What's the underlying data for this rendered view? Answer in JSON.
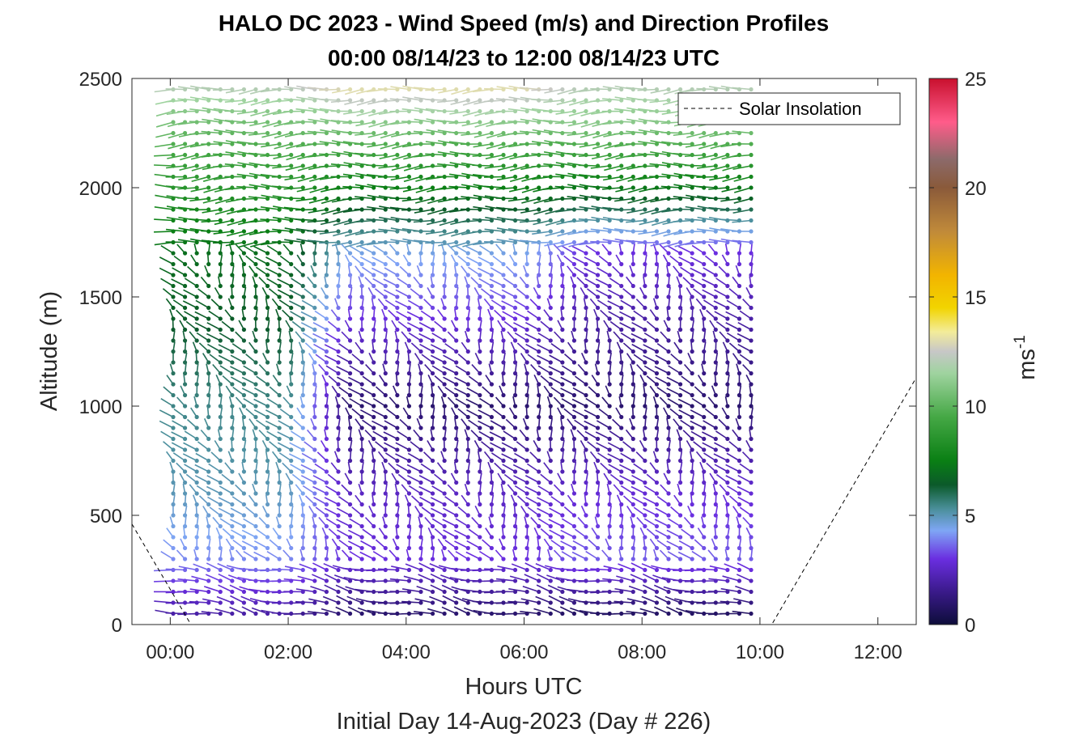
{
  "chart_data": {
    "type": "wind-barb-profile",
    "title": "HALO DC 2023 - Wind Speed (m/s) and Direction Profiles",
    "subtitle": "00:00 08/14/23 to 12:00 08/14/23  UTC",
    "xlabel": "Hours UTC",
    "xlabel2": "Initial Day 14-Aug-2023 (Day # 226)",
    "ylabel": "Altitude (m)",
    "xlim": [
      -0.65,
      12.65
    ],
    "ylim": [
      0,
      2500
    ],
    "x_ticks": [
      0,
      2,
      4,
      6,
      8,
      10,
      12
    ],
    "x_tick_labels": [
      "00:00",
      "02:00",
      "04:00",
      "06:00",
      "08:00",
      "10:00",
      "12:00"
    ],
    "y_ticks": [
      0,
      500,
      1000,
      1500,
      2000,
      2500
    ],
    "y_tick_labels": [
      "0",
      "500",
      "1000",
      "1500",
      "2000",
      "2500"
    ],
    "legend": {
      "label": "Solar Insolation",
      "location": "top-right",
      "line_style": "dashed"
    },
    "colorbar": {
      "label": "ms",
      "label_exponent": "-1",
      "range": [
        0,
        25
      ],
      "ticks": [
        0,
        5,
        10,
        15,
        20,
        25
      ],
      "tick_labels": [
        "0",
        "5",
        "10",
        "15",
        "20",
        "25"
      ],
      "colors": [
        [
          0,
          "#0d0d3a"
        ],
        [
          1.5,
          "#3a1a8a"
        ],
        [
          3,
          "#6a2ee0"
        ],
        [
          4.3,
          "#7fa6f5"
        ],
        [
          5.3,
          "#4a8f9a"
        ],
        [
          6.4,
          "#0b5a2a"
        ],
        [
          7.5,
          "#0a7f14"
        ],
        [
          9.5,
          "#45a845"
        ],
        [
          11.5,
          "#9fd39f"
        ],
        [
          12.5,
          "#c7c7c7"
        ],
        [
          13.4,
          "#f3ec9a"
        ],
        [
          14.5,
          "#f2d400"
        ],
        [
          16,
          "#f2b400"
        ],
        [
          18,
          "#c08a3a"
        ],
        [
          20,
          "#8a5a3a"
        ],
        [
          21.3,
          "#8c6a6a"
        ],
        [
          23,
          "#ff5c8a"
        ],
        [
          25,
          "#c8102e"
        ]
      ]
    },
    "barb_times_hours": [
      0.05,
      0.25,
      0.45,
      0.65,
      0.85,
      1.05,
      1.25,
      1.45,
      1.65,
      1.85,
      2.05,
      2.25,
      2.45,
      2.65,
      2.85,
      3.05,
      3.25,
      3.45,
      3.65,
      3.85,
      4.05,
      4.25,
      4.45,
      4.65,
      4.85,
      5.05,
      5.25,
      5.45,
      5.65,
      5.85,
      6.05,
      6.25,
      6.45,
      6.65,
      6.85,
      7.05,
      7.25,
      7.45,
      7.65,
      7.85,
      8.05,
      8.25,
      8.45,
      8.65,
      8.85,
      9.05,
      9.25,
      9.45,
      9.65,
      9.85
    ],
    "barb_altitudes_m": [
      50,
      100,
      150,
      200,
      250,
      300,
      350,
      400,
      450,
      500,
      550,
      600,
      650,
      700,
      750,
      800,
      850,
      900,
      950,
      1000,
      1050,
      1100,
      1150,
      1200,
      1250,
      1300,
      1350,
      1400,
      1450,
      1500,
      1550,
      1600,
      1650,
      1700,
      1750,
      1800,
      1850,
      1900,
      1950,
      2000,
      2050,
      2100,
      2150,
      2200,
      2250,
      2300,
      2350,
      2400,
      2450
    ],
    "wind_speed_profile_mps": {
      "altitudes_m": [
        50,
        300,
        600,
        1000,
        1400,
        1700,
        1900,
        2100,
        2300,
        2450
      ],
      "early_hours_0_to_2": [
        2.0,
        4.0,
        5.0,
        5.5,
        6.5,
        7.0,
        8.0,
        9.0,
        10.5,
        12.0
      ],
      "mid_hours_3_to_6": [
        1.0,
        3.0,
        2.5,
        1.0,
        3.0,
        4.5,
        6.5,
        8.5,
        11.0,
        13.0
      ],
      "late_hours_7_to_9_5": [
        0.8,
        3.5,
        2.8,
        1.0,
        2.0,
        3.0,
        6.0,
        8.5,
        11.0,
        12.0
      ]
    },
    "solar_insolation": {
      "x": [
        -0.65,
        0.35,
        10.2,
        12.65
      ],
      "y": [
        460,
        0,
        0,
        1130
      ]
    }
  }
}
